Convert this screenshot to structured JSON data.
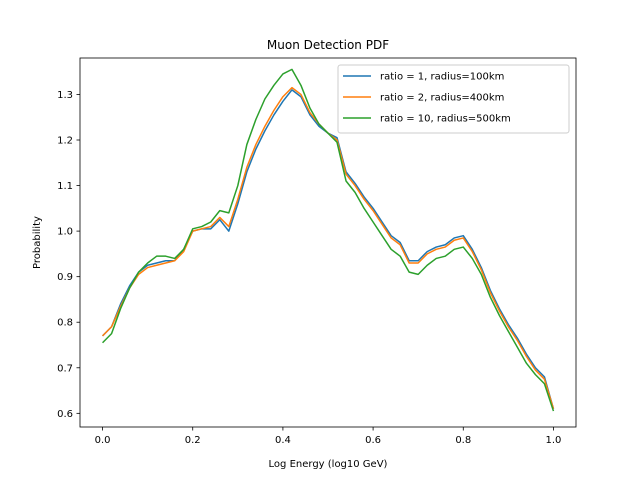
{
  "chart_data": {
    "type": "line",
    "title": "Muon Detection PDF",
    "xlabel": "Log Energy (log10 GeV)",
    "ylabel": "Probability",
    "xlim": [
      -0.05,
      1.05
    ],
    "ylim": [
      0.57,
      1.38
    ],
    "xticks": [
      0.0,
      0.2,
      0.4,
      0.6,
      0.8,
      1.0
    ],
    "xtick_labels": [
      "0.0",
      "0.2",
      "0.4",
      "0.6",
      "0.8",
      "1.0"
    ],
    "yticks": [
      0.6,
      0.7,
      0.8,
      0.9,
      1.0,
      1.1,
      1.2,
      1.3
    ],
    "ytick_labels": [
      "0.6",
      "0.7",
      "0.8",
      "0.9",
      "1.0",
      "1.1",
      "1.2",
      "1.3"
    ],
    "grid": false,
    "legend_position": "top-right",
    "x": [
      0.0,
      0.02,
      0.04,
      0.06,
      0.08,
      0.1,
      0.12,
      0.14,
      0.16,
      0.18,
      0.2,
      0.22,
      0.24,
      0.26,
      0.28,
      0.3,
      0.32,
      0.34,
      0.36,
      0.38,
      0.4,
      0.42,
      0.44,
      0.46,
      0.48,
      0.5,
      0.52,
      0.54,
      0.56,
      0.58,
      0.6,
      0.62,
      0.64,
      0.66,
      0.68,
      0.7,
      0.72,
      0.74,
      0.76,
      0.78,
      0.8,
      0.82,
      0.84,
      0.86,
      0.88,
      0.9,
      0.92,
      0.94,
      0.96,
      0.98,
      1.0
    ],
    "series": [
      {
        "name": "ratio = 1, radius=100km",
        "color": "#1f77b4",
        "values": [
          0.77,
          0.79,
          0.84,
          0.88,
          0.91,
          0.925,
          0.93,
          0.935,
          0.935,
          0.96,
          1.0,
          1.005,
          1.005,
          1.025,
          1.0,
          1.06,
          1.13,
          1.18,
          1.22,
          1.255,
          1.285,
          1.31,
          1.295,
          1.255,
          1.23,
          1.215,
          1.205,
          1.13,
          1.105,
          1.075,
          1.05,
          1.02,
          0.99,
          0.975,
          0.935,
          0.935,
          0.955,
          0.965,
          0.97,
          0.985,
          0.99,
          0.96,
          0.92,
          0.87,
          0.83,
          0.795,
          0.765,
          0.73,
          0.7,
          0.68,
          0.61
        ]
      },
      {
        "name": "ratio = 2, radius=400km",
        "color": "#ff7f0e",
        "values": [
          0.77,
          0.79,
          0.835,
          0.875,
          0.905,
          0.92,
          0.925,
          0.93,
          0.935,
          0.955,
          1.0,
          1.005,
          1.01,
          1.03,
          1.01,
          1.07,
          1.14,
          1.19,
          1.23,
          1.265,
          1.295,
          1.315,
          1.3,
          1.26,
          1.235,
          1.215,
          1.2,
          1.125,
          1.1,
          1.07,
          1.045,
          1.015,
          0.985,
          0.97,
          0.93,
          0.93,
          0.95,
          0.96,
          0.965,
          0.98,
          0.985,
          0.955,
          0.915,
          0.865,
          0.825,
          0.79,
          0.76,
          0.725,
          0.695,
          0.675,
          0.61
        ]
      },
      {
        "name": "ratio = 10, radius=500km",
        "color": "#2ca02c",
        "values": [
          0.755,
          0.775,
          0.83,
          0.875,
          0.91,
          0.93,
          0.945,
          0.945,
          0.94,
          0.96,
          1.005,
          1.01,
          1.02,
          1.045,
          1.04,
          1.1,
          1.19,
          1.245,
          1.29,
          1.32,
          1.345,
          1.355,
          1.32,
          1.27,
          1.235,
          1.215,
          1.195,
          1.11,
          1.085,
          1.05,
          1.02,
          0.99,
          0.96,
          0.945,
          0.91,
          0.905,
          0.925,
          0.94,
          0.945,
          0.96,
          0.965,
          0.94,
          0.905,
          0.855,
          0.815,
          0.78,
          0.745,
          0.71,
          0.685,
          0.665,
          0.605
        ]
      }
    ]
  }
}
